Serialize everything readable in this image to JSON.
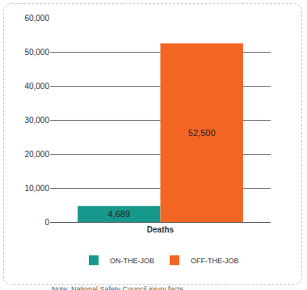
{
  "chart_data": {
    "type": "bar",
    "categories": [
      "Deaths"
    ],
    "series": [
      {
        "name": "ON-THE-JOB",
        "color": "#17988c",
        "values": [
          4689
        ],
        "value_labels": [
          "4,689"
        ]
      },
      {
        "name": "OFF-THE-JOB",
        "color": "#f26522",
        "values": [
          52500
        ],
        "value_labels": [
          "52,500"
        ]
      }
    ],
    "ylim": [
      0,
      60000
    ],
    "yticks": [
      0,
      {
        "value": 10000,
        "label": "10,000"
      },
      {
        "value": 20000,
        "label": "20,000"
      },
      {
        "value": 30000,
        "label": "30,000"
      },
      {
        "value": 40000,
        "label": "40,000"
      },
      {
        "value": 50000,
        "label": "50,000"
      },
      {
        "value": 60000,
        "label": "60,000"
      }
    ],
    "grid": true,
    "data_labels": true,
    "legend": "bottom",
    "annotations": [
      "Note: National Safety Council injury facts"
    ]
  }
}
